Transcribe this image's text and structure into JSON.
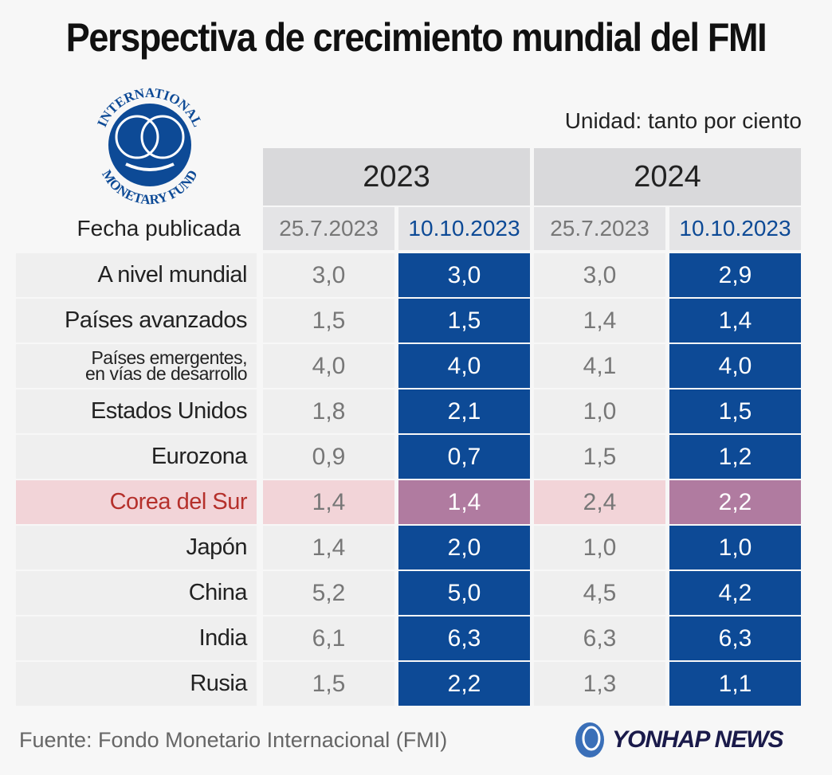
{
  "title": "Perspectiva de crecimiento mundial del FMI",
  "unit": "Unidad: tanto por ciento",
  "logo": {
    "text": "INTERNATIONAL MONETARY FUND",
    "color": "#0d4a96"
  },
  "colors": {
    "new_forecast": "#0d4a96",
    "highlight_row": "#f2d4d8",
    "highlight_new": "#b07ba0",
    "highlight_label": "#b5302b"
  },
  "chart_data": {
    "type": "table",
    "row_header": "Fecha publicada",
    "years": [
      "2023",
      "2024"
    ],
    "dates": [
      "25.7.2023",
      "10.10.2023",
      "25.7.2023",
      "10.10.2023"
    ],
    "highlight": "Corea del Sur",
    "rows": [
      {
        "label": "A nivel mundial",
        "values": [
          "3,0",
          "3,0",
          "3,0",
          "2,9"
        ]
      },
      {
        "label": "Países avanzados",
        "values": [
          "1,5",
          "1,5",
          "1,4",
          "1,4"
        ]
      },
      {
        "label": "Países emergentes, en vías de desarrollo",
        "line1": "Países emergentes,",
        "line2": "en vías de desarrollo",
        "values": [
          "4,0",
          "4,0",
          "4,1",
          "4,0"
        ]
      },
      {
        "label": "Estados Unidos",
        "values": [
          "1,8",
          "2,1",
          "1,0",
          "1,5"
        ]
      },
      {
        "label": "Eurozona",
        "values": [
          "0,9",
          "0,7",
          "1,5",
          "1,2"
        ]
      },
      {
        "label": "Corea del Sur",
        "values": [
          "1,4",
          "1,4",
          "2,4",
          "2,2"
        ]
      },
      {
        "label": "Japón",
        "values": [
          "1,4",
          "2,0",
          "1,0",
          "1,0"
        ]
      },
      {
        "label": "China",
        "values": [
          "5,2",
          "5,0",
          "4,5",
          "4,2"
        ]
      },
      {
        "label": "India",
        "values": [
          "6,1",
          "6,3",
          "6,3",
          "6,3"
        ]
      },
      {
        "label": "Rusia",
        "values": [
          "1,5",
          "2,2",
          "1,3",
          "1,1"
        ]
      }
    ]
  },
  "footer": {
    "source": "Fuente: Fondo Monetario Internacional (FMI)",
    "brand": "YONHAP NEWS"
  }
}
